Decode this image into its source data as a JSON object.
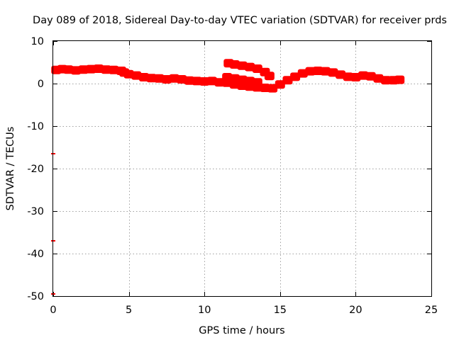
{
  "chart_data": {
    "type": "scatter",
    "title": "Day 089 of 2018, Sidereal Day-to-day VTEC variation (SDTVAR) for receiver prds",
    "xlabel": "GPS time / hours",
    "ylabel": "SDTVAR / TECUs",
    "xlim": [
      0,
      25
    ],
    "ylim": [
      -50,
      10
    ],
    "xticks": [
      "0",
      "5",
      "10",
      "15",
      "20",
      "25"
    ],
    "yticks": [
      "10",
      "0",
      "-10",
      "-20",
      "-30",
      "-40",
      "-50"
    ],
    "grid": true,
    "series": [
      {
        "name": "SDTVAR",
        "color": "#ff0000",
        "points": [
          [
            0.2,
            3.2
          ],
          [
            0.6,
            3.4
          ],
          [
            1.0,
            3.3
          ],
          [
            1.5,
            3.1
          ],
          [
            2.0,
            3.3
          ],
          [
            2.5,
            3.4
          ],
          [
            3.0,
            3.5
          ],
          [
            3.5,
            3.3
          ],
          [
            4.0,
            3.2
          ],
          [
            4.5,
            3.0
          ],
          [
            4.7,
            2.6
          ],
          [
            5.0,
            2.2
          ],
          [
            5.5,
            1.9
          ],
          [
            6.0,
            1.5
          ],
          [
            6.5,
            1.3
          ],
          [
            7.0,
            1.2
          ],
          [
            7.5,
            1.0
          ],
          [
            8.0,
            1.2
          ],
          [
            8.5,
            1.0
          ],
          [
            9.0,
            0.7
          ],
          [
            9.5,
            0.6
          ],
          [
            10.0,
            0.5
          ],
          [
            10.5,
            0.6
          ],
          [
            11.0,
            0.3
          ],
          [
            11.5,
            0.2
          ],
          [
            12.0,
            -0.2
          ],
          [
            12.5,
            -0.5
          ],
          [
            13.0,
            -0.7
          ],
          [
            13.5,
            -0.9
          ],
          [
            14.0,
            -1.0
          ],
          [
            14.5,
            -1.1
          ],
          [
            15.0,
            -0.2
          ],
          [
            15.5,
            0.8
          ],
          [
            16.0,
            1.6
          ],
          [
            16.5,
            2.4
          ],
          [
            17.0,
            2.9
          ],
          [
            17.5,
            3.0
          ],
          [
            18.0,
            2.9
          ],
          [
            18.5,
            2.6
          ],
          [
            19.0,
            2.1
          ],
          [
            19.5,
            1.6
          ],
          [
            20.0,
            1.5
          ],
          [
            20.5,
            1.9
          ],
          [
            21.0,
            1.7
          ],
          [
            21.5,
            1.2
          ],
          [
            22.0,
            0.8
          ],
          [
            22.5,
            0.8
          ],
          [
            22.9,
            0.9
          ],
          [
            11.6,
            4.8
          ],
          [
            12.0,
            4.5
          ],
          [
            12.5,
            4.2
          ],
          [
            13.0,
            3.9
          ],
          [
            13.5,
            3.5
          ],
          [
            14.0,
            2.7
          ],
          [
            14.3,
            1.8
          ],
          [
            11.5,
            1.5
          ],
          [
            12.0,
            1.2
          ],
          [
            12.5,
            0.9
          ],
          [
            13.0,
            0.6
          ],
          [
            13.5,
            0.3
          ],
          [
            0,
            -16.5
          ],
          [
            0,
            -37
          ],
          [
            0,
            -49.5
          ]
        ]
      }
    ]
  }
}
